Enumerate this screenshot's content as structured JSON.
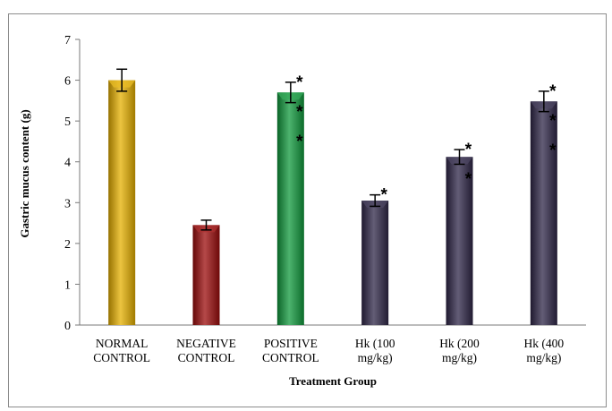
{
  "chart_data": {
    "type": "bar",
    "title": "",
    "xlabel": "Treatment Group",
    "ylabel": "Gastric mucus content (g)",
    "ylim": [
      0,
      7
    ],
    "yticks": [
      "0",
      "1",
      "2",
      "3",
      "4",
      "5",
      "6",
      "7"
    ],
    "grid": false,
    "categories": [
      [
        "NORMAL",
        "CONTROL"
      ],
      [
        "NEGATIVE",
        "CONTROL"
      ],
      [
        "POSITIVE",
        "CONTROL"
      ],
      [
        "Hk (100",
        "mg/kg)"
      ],
      [
        "Hk (200",
        "mg/kg)"
      ],
      [
        "Hk (400",
        "mg/kg)"
      ]
    ],
    "values": [
      6.0,
      2.45,
      5.7,
      3.05,
      4.12,
      5.48
    ],
    "errors": [
      0.27,
      0.12,
      0.25,
      0.14,
      0.18,
      0.25
    ],
    "colors": [
      "#e6b000",
      "#9c0c0c",
      "#119a3d",
      "#2f2748",
      "#2f2748",
      "#2f2748"
    ],
    "significance": [
      "",
      "",
      "*\n*\n*",
      "*",
      "*\n*",
      "*\n*\n*"
    ]
  }
}
